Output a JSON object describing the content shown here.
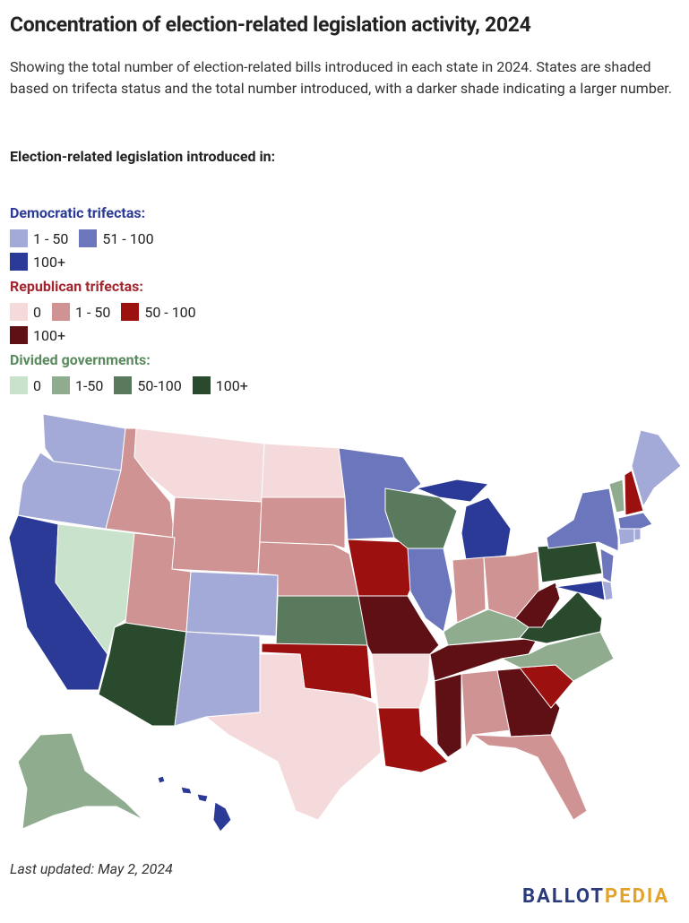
{
  "header": {
    "title": "Concentration of election-related legislation activity, 2024",
    "subtitle": "Showing the total number of election-related bills introduced in each state in 2024. States are shaded based on trifecta status and the total number introduced, with a darker shade indicating a larger number."
  },
  "legend": {
    "heading": "Election-related legislation introduced in:",
    "groups": [
      {
        "title": "Democratic trifectas:",
        "color": "#2b3a96",
        "items": [
          {
            "label": "1 - 50",
            "color": "#a3aad8"
          },
          {
            "label": "51 - 100",
            "color": "#6b76bd"
          },
          {
            "label": "100+",
            "color": "#2b3a96"
          }
        ]
      },
      {
        "title": "Republican trifectas:",
        "color": "#a3262f",
        "items": [
          {
            "label": "0",
            "color": "#f5dadb"
          },
          {
            "label": "1 - 50",
            "color": "#d09393"
          },
          {
            "label": "50 - 100",
            "color": "#9c1010"
          },
          {
            "label": "100+",
            "color": "#5e1015"
          }
        ]
      },
      {
        "title": "Divided governments:",
        "color": "#5a8a5e",
        "items": [
          {
            "label": "0",
            "color": "#c8e2cc"
          },
          {
            "label": "1-50",
            "color": "#8fac8f"
          },
          {
            "label": "50-100",
            "color": "#5a7a5e"
          },
          {
            "label": "100+",
            "color": "#2a4a2e"
          }
        ]
      }
    ]
  },
  "footer": {
    "updated": "Last updated: May 2, 2024",
    "logo": [
      "BALLOT",
      "PEDIA"
    ]
  }
}
